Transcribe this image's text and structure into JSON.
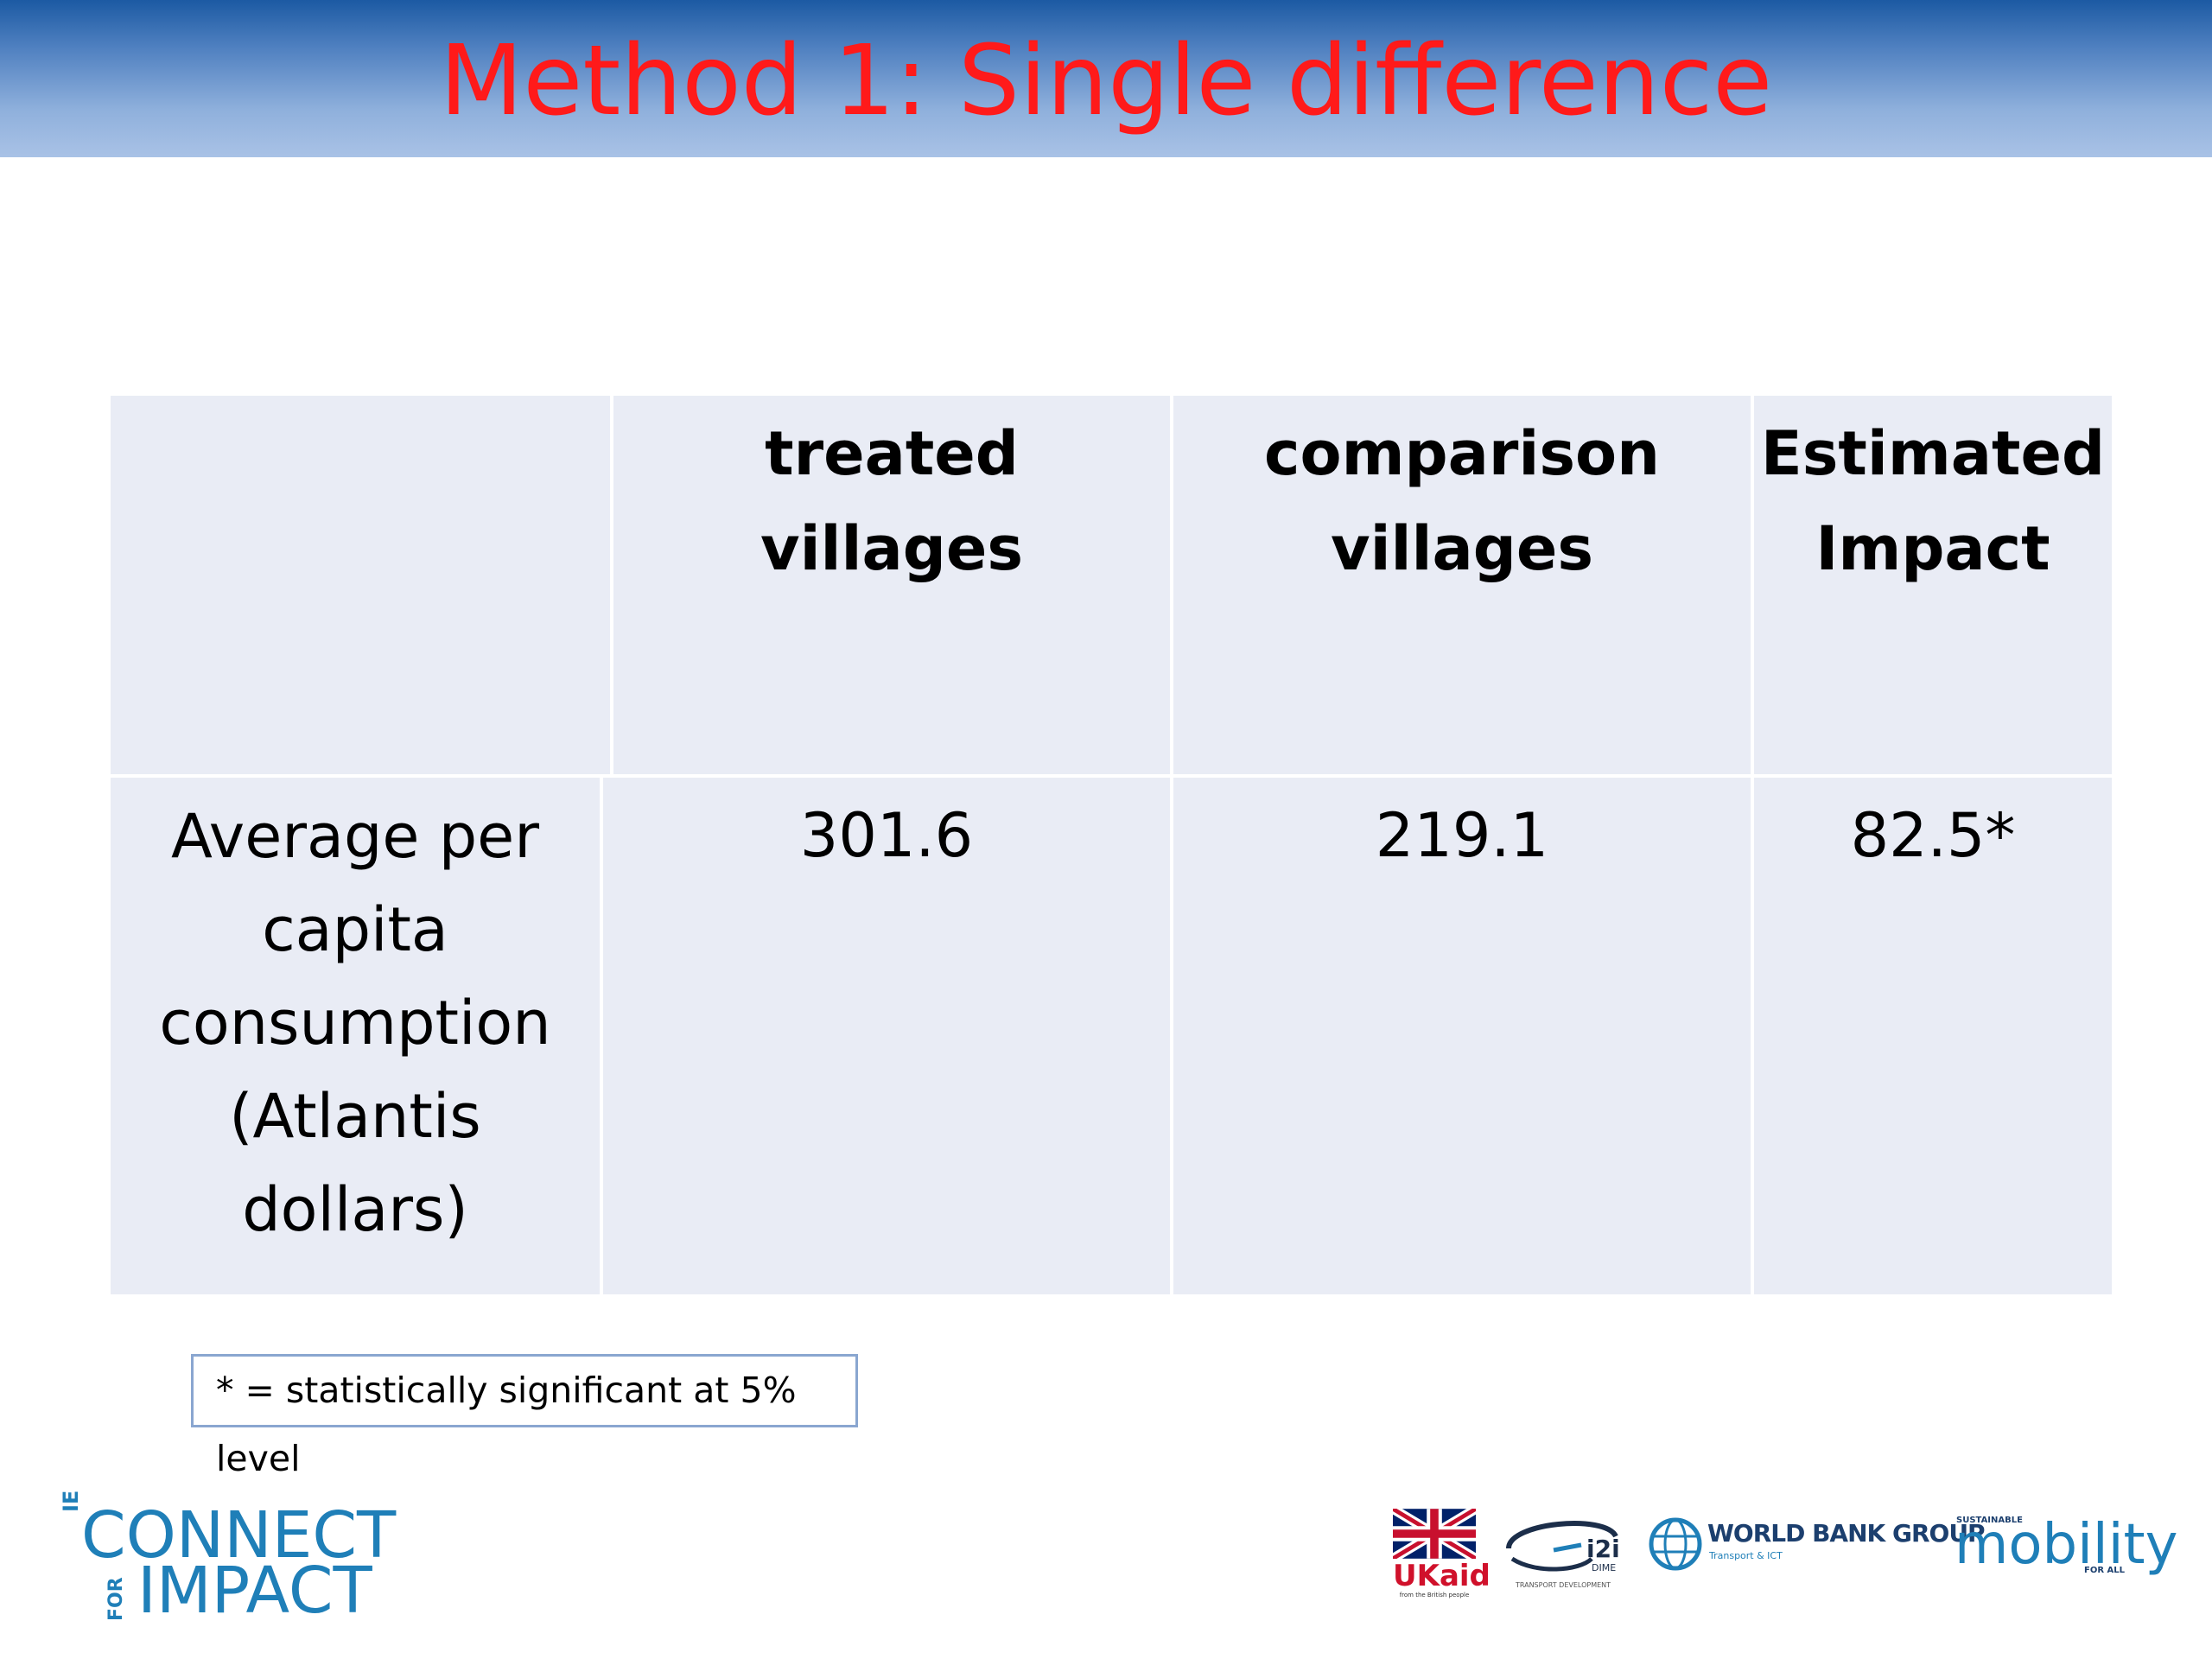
{
  "slide": {
    "title": "Method 1: Single difference"
  },
  "table": {
    "headers": [
      "treated villages",
      "comparison villages",
      "Estimated Impact"
    ],
    "row_label": "Average per capita consumption (Atlantis dollars)",
    "values": [
      "301.6",
      "219.1",
      "82.5*"
    ]
  },
  "footnote": "* = statistically significant at 5% level",
  "logos": {
    "connect_for_impact": {
      "prefix": "IE",
      "line1": "CONNECT",
      "for_label": "FOR",
      "line2": "IMPACT"
    },
    "ukaid": {
      "text": "UKaid",
      "sub": "from the British people"
    },
    "i2i": {
      "text": "i2i",
      "dime": "DIME",
      "sub": "TRANSPORT DEVELOPMENT"
    },
    "world_bank": {
      "text": "WORLD BANK GROUP",
      "sub": "Transport & ICT"
    },
    "mobility": {
      "sustainable": "SUSTAINABLE",
      "text": "mobility",
      "for_all": "FOR ALL"
    }
  }
}
